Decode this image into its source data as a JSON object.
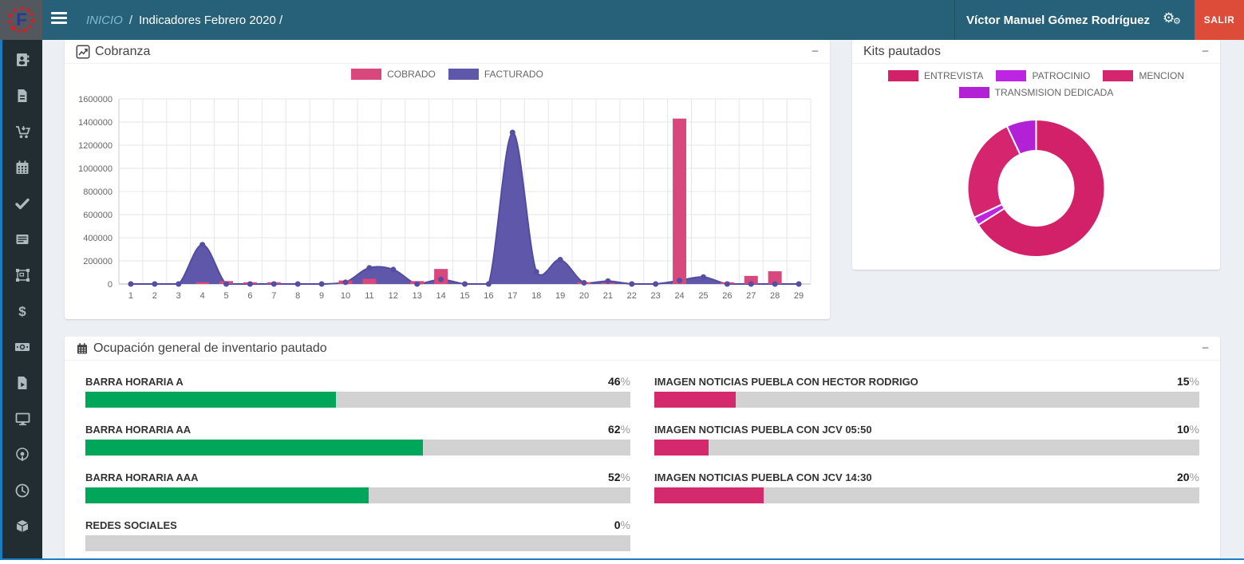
{
  "theme": {
    "navbar_bg": "#266179",
    "sidebar_bg": "#222d32",
    "accent_blue": "#1a7cc1",
    "danger_red": "#dd4b39",
    "green": "#00a65a",
    "pink": "#d4296d",
    "purple_area": "#5f58aa",
    "pink_bar": "#d9487d"
  },
  "navbar": {
    "logo_letter": "F",
    "breadcrumb": {
      "home": "INICIO",
      "separator": "/",
      "current": "Indicadores Febrero 2020 /"
    },
    "user_name": "Víctor Manuel Gómez Rodríguez",
    "logout_label": "SALIR"
  },
  "sidebar": {
    "icons": [
      "address-book",
      "file-document",
      "shopping-cart",
      "calendar",
      "check",
      "list-card",
      "object-group",
      "dollar",
      "money-bill",
      "file-video",
      "desktop",
      "podcast",
      "clock",
      "cube"
    ]
  },
  "cobranza_panel": {
    "title": "Cobranza",
    "collapse_label": "−"
  },
  "kits_panel": {
    "title": "Kits pautados",
    "collapse_label": "−"
  },
  "ocupacion_panel": {
    "title": "Ocupación general de inventario pautado",
    "collapse_label": "−",
    "percent_sign": "%",
    "items": [
      {
        "label": "BARRA HORARIA A",
        "percent": 46,
        "color": "#00a65a"
      },
      {
        "label": "BARRA HORARIA AA",
        "percent": 62,
        "color": "#00a65a"
      },
      {
        "label": "BARRA HORARIA AAA",
        "percent": 52,
        "color": "#00a65a"
      },
      {
        "label": "REDES SOCIALES",
        "percent": 0,
        "color": "#00a65a"
      },
      {
        "label": "IMAGEN NOTICIAS PUEBLA CON HECTOR RODRIGO",
        "percent": 15,
        "color": "#d4296d"
      },
      {
        "label": "IMAGEN NOTICIAS PUEBLA CON JCV 05:50",
        "percent": 10,
        "color": "#d4296d"
      },
      {
        "label": "IMAGEN NOTICIAS PUEBLA CON JCV 14:30",
        "percent": 20,
        "color": "#d4296d"
      }
    ]
  },
  "chart_data": [
    {
      "type": "bar",
      "subtype": "combo-bar-area",
      "title": "Cobranza",
      "categories": [
        1,
        2,
        3,
        4,
        5,
        6,
        7,
        8,
        9,
        10,
        11,
        12,
        13,
        14,
        15,
        16,
        17,
        18,
        19,
        20,
        21,
        22,
        23,
        24,
        25,
        26,
        27,
        28,
        29
      ],
      "series": [
        {
          "name": "COBRADO",
          "type": "bar",
          "color": "#d9487d",
          "values": [
            0,
            0,
            0,
            15000,
            25000,
            15000,
            15000,
            0,
            0,
            30000,
            45000,
            0,
            25000,
            130000,
            0,
            0,
            0,
            0,
            0,
            15000,
            10000,
            0,
            0,
            1430000,
            0,
            15000,
            70000,
            110000,
            0
          ]
        },
        {
          "name": "FACTURADO",
          "type": "area",
          "color": "#5f58aa",
          "stroke": "#534c9e",
          "values": [
            0,
            0,
            0,
            340000,
            0,
            0,
            0,
            0,
            0,
            15000,
            140000,
            125000,
            0,
            40000,
            0,
            0,
            1310000,
            105000,
            210000,
            10000,
            25000,
            0,
            0,
            30000,
            60000,
            0,
            0,
            0,
            0
          ]
        }
      ],
      "xlabel": "",
      "ylabel": "",
      "ylim": [
        0,
        1600000
      ],
      "ytick_step": 200000,
      "grid": true,
      "legend_position": "top"
    },
    {
      "type": "pie",
      "donut": true,
      "title": "Kits pautados",
      "labels": [
        "ENTREVISTA",
        "PATROCINIO",
        "MENCION",
        "TRANSMISION DEDICADA"
      ],
      "values": [
        66,
        2,
        25,
        7
      ],
      "colors": [
        "#d32169",
        "#be25e3",
        "#d6256f",
        "#b321d6"
      ],
      "legend_position": "top"
    }
  ]
}
